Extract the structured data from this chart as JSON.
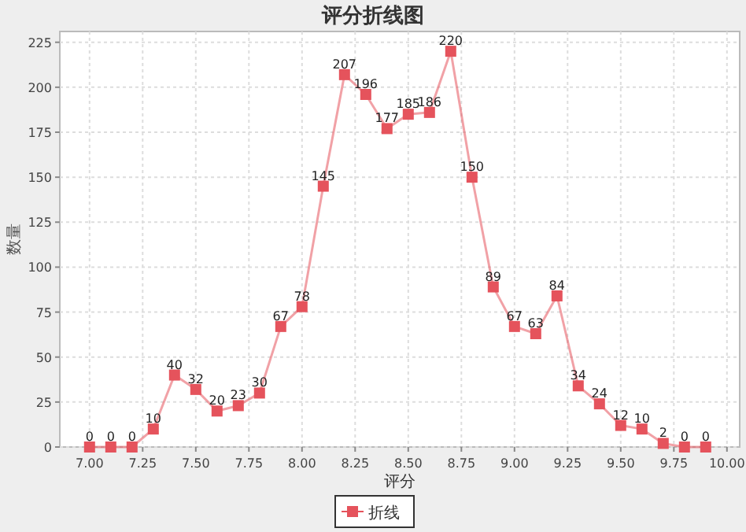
{
  "chart_data": {
    "type": "line",
    "title": "评分折线图",
    "xlabel": "评分",
    "ylabel": "数量",
    "x": [
      7.0,
      7.1,
      7.2,
      7.3,
      7.4,
      7.5,
      7.6,
      7.7,
      7.8,
      7.9,
      8.0,
      8.1,
      8.2,
      8.3,
      8.4,
      8.5,
      8.6,
      8.7,
      8.8,
      8.9,
      9.0,
      9.1,
      9.2,
      9.3,
      9.4,
      9.5,
      9.6,
      9.7,
      9.8,
      9.9
    ],
    "series": [
      {
        "name": "折线",
        "color": "#e5535c",
        "values": [
          0,
          0,
          0,
          10,
          40,
          32,
          20,
          23,
          30,
          67,
          78,
          145,
          207,
          196,
          177,
          185,
          186,
          220,
          150,
          89,
          67,
          63,
          84,
          34,
          24,
          12,
          10,
          2,
          0,
          0
        ]
      }
    ],
    "xlim": [
      6.86,
      10.06
    ],
    "xticks": [
      {
        "value": 7,
        "label": "7.00"
      },
      {
        "value": 7.25,
        "label": "7.25"
      },
      {
        "value": 7.5,
        "label": "7.50"
      },
      {
        "value": 7.75,
        "label": "7.75"
      },
      {
        "value": 8,
        "label": "8.00"
      },
      {
        "value": 8.25,
        "label": "8.25"
      },
      {
        "value": 8.5,
        "label": "8.50"
      },
      {
        "value": 8.75,
        "label": "8.75"
      },
      {
        "value": 9,
        "label": "9.00"
      },
      {
        "value": 9.25,
        "label": "9.25"
      },
      {
        "value": 9.5,
        "label": "9.50"
      },
      {
        "value": 9.75,
        "label": "9.75"
      },
      {
        "value": 10,
        "label": "10.00"
      }
    ],
    "ylim": [
      0,
      231
    ],
    "yticks": [
      0,
      25,
      50,
      75,
      100,
      125,
      150,
      175,
      200,
      225
    ],
    "grid": true,
    "legend": "bottom",
    "marker": "square",
    "line_style": "solid",
    "data_labels": true
  }
}
